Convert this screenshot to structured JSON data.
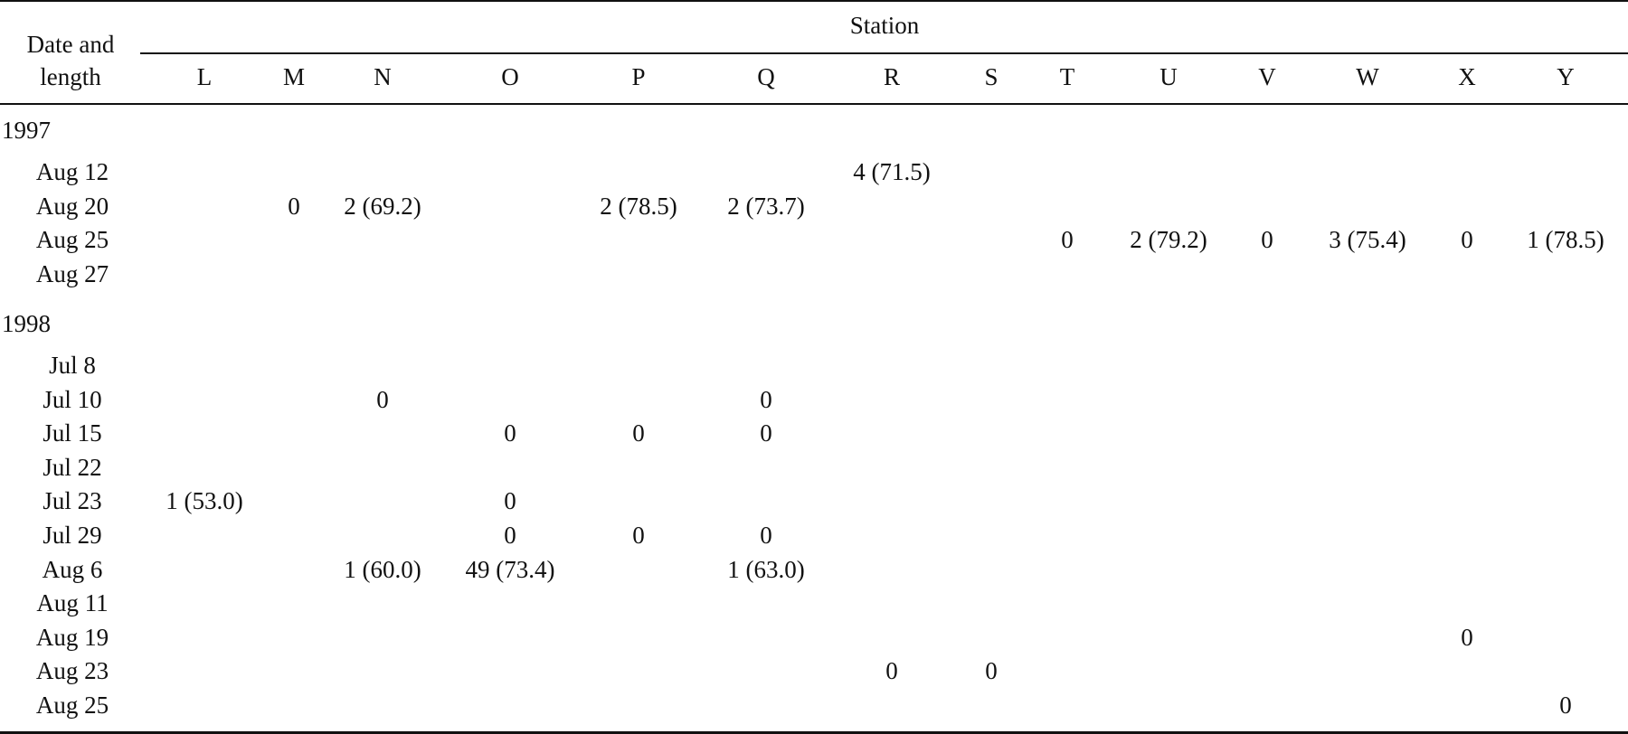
{
  "header": {
    "stub_line1": "Date and",
    "stub_line2": "length",
    "spanner": "Station",
    "stations": [
      "L",
      "M",
      "N",
      "O",
      "P",
      "Q",
      "R",
      "S",
      "T",
      "U",
      "V",
      "W",
      "X",
      "Y"
    ]
  },
  "groups": [
    {
      "year": "1997",
      "rows": [
        {
          "date": "Aug 12",
          "values": [
            "",
            "",
            "",
            "",
            "",
            "",
            "4 (71.5)",
            "",
            "",
            "",
            "",
            "",
            "",
            ""
          ]
        },
        {
          "date": "Aug 20",
          "values": [
            "",
            "0",
            "2 (69.2)",
            "",
            "2 (78.5)",
            "2 (73.7)",
            "",
            "",
            "",
            "",
            "",
            "",
            "",
            ""
          ]
        },
        {
          "date": "Aug 25",
          "values": [
            "",
            "",
            "",
            "",
            "",
            "",
            "",
            "",
            "0",
            "2 (79.2)",
            "0",
            "3 (75.4)",
            "0",
            "1 (78.5)"
          ]
        },
        {
          "date": "Aug 27",
          "values": [
            "",
            "",
            "",
            "",
            "",
            "",
            "",
            "",
            "",
            "",
            "",
            "",
            "",
            ""
          ]
        }
      ]
    },
    {
      "year": "1998",
      "rows": [
        {
          "date": "Jul 8",
          "values": [
            "",
            "",
            "",
            "",
            "",
            "",
            "",
            "",
            "",
            "",
            "",
            "",
            "",
            ""
          ]
        },
        {
          "date": "Jul 10",
          "values": [
            "",
            "",
            "0",
            "",
            "",
            "0",
            "",
            "",
            "",
            "",
            "",
            "",
            "",
            ""
          ]
        },
        {
          "date": "Jul 15",
          "values": [
            "",
            "",
            "",
            "0",
            "0",
            "0",
            "",
            "",
            "",
            "",
            "",
            "",
            "",
            ""
          ]
        },
        {
          "date": "Jul 22",
          "values": [
            "",
            "",
            "",
            "",
            "",
            "",
            "",
            "",
            "",
            "",
            "",
            "",
            "",
            ""
          ]
        },
        {
          "date": "Jul 23",
          "values": [
            "1 (53.0)",
            "",
            "",
            "0",
            "",
            "",
            "",
            "",
            "",
            "",
            "",
            "",
            "",
            ""
          ]
        },
        {
          "date": "Jul 29",
          "values": [
            "",
            "",
            "",
            "0",
            "0",
            "0",
            "",
            "",
            "",
            "",
            "",
            "",
            "",
            ""
          ]
        },
        {
          "date": "Aug 6",
          "values": [
            "",
            "",
            "1 (60.0)",
            "49 (73.4)",
            "",
            "1 (63.0)",
            "",
            "",
            "",
            "",
            "",
            "",
            "",
            ""
          ]
        },
        {
          "date": "Aug 11",
          "values": [
            "",
            "",
            "",
            "",
            "",
            "",
            "",
            "",
            "",
            "",
            "",
            "",
            "",
            ""
          ]
        },
        {
          "date": "Aug 19",
          "values": [
            "",
            "",
            "",
            "",
            "",
            "",
            "",
            "",
            "",
            "",
            "",
            "",
            "0",
            ""
          ]
        },
        {
          "date": "Aug 23",
          "values": [
            "",
            "",
            "",
            "",
            "",
            "",
            "0",
            "0",
            "",
            "",
            "",
            "",
            "",
            ""
          ]
        },
        {
          "date": "Aug 25",
          "values": [
            "",
            "",
            "",
            "",
            "",
            "",
            "",
            "",
            "",
            "",
            "",
            "",
            "",
            "0"
          ]
        }
      ]
    }
  ]
}
